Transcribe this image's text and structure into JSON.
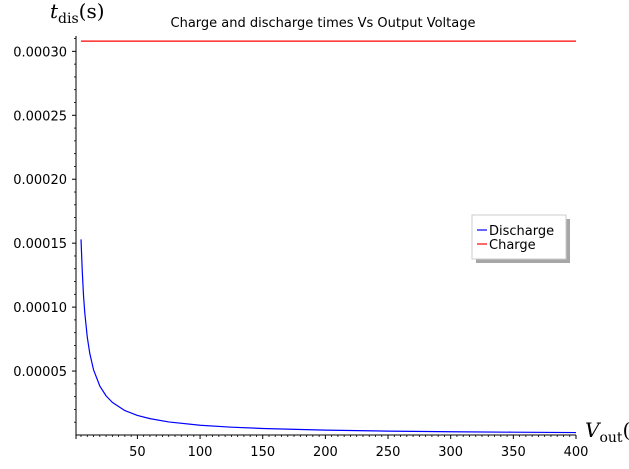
{
  "chart_data": {
    "type": "line",
    "title": "Charge and discharge times Vs Output Voltage",
    "xlabel": {
      "main": "V",
      "sub": "out",
      "tail": "("
    },
    "ylabel": {
      "main": "t",
      "sub": "dis",
      "tail": "(s)"
    },
    "xlim": [
      1,
      400
    ],
    "ylim": [
      0,
      0.000312
    ],
    "xticks": [
      50,
      100,
      150,
      200,
      250,
      300,
      350,
      400
    ],
    "yticks": [
      5e-05,
      0.0001,
      0.00015,
      0.0002,
      0.00025,
      0.0003
    ],
    "ytick_labels": [
      "0.00005",
      "0.00010",
      "0.00015",
      "0.00020",
      "0.00025",
      "0.00030"
    ],
    "legend_position": "center-right",
    "series": [
      {
        "name": "Discharge",
        "color": "#0000ff",
        "x": [
          5,
          6,
          7,
          8,
          10,
          12,
          15,
          20,
          25,
          30,
          40,
          50,
          60,
          75,
          100,
          125,
          150,
          200,
          250,
          300,
          350,
          400
        ],
        "y": [
          0.000153,
          0.000128,
          0.000109,
          9.56e-05,
          7.65e-05,
          6.38e-05,
          5.1e-05,
          3.83e-05,
          3.06e-05,
          2.55e-05,
          1.91e-05,
          1.53e-05,
          1.28e-05,
          1.02e-05,
          7.65e-06,
          6.12e-06,
          5.1e-06,
          3.83e-06,
          3.06e-06,
          2.55e-06,
          2.19e-06,
          1.91e-06
        ]
      },
      {
        "name": "Charge",
        "color": "#ff0000",
        "x": [
          5,
          400
        ],
        "y": [
          0.000308,
          0.000308
        ]
      }
    ]
  }
}
